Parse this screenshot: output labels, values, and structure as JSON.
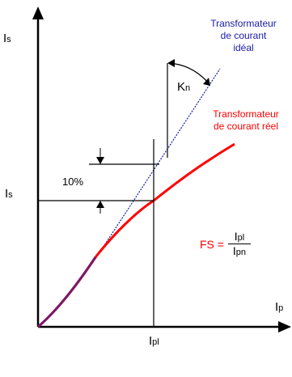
{
  "labels": {
    "y_axis": "Is",
    "y_axis_main": "I",
    "y_axis_sub": "s",
    "y_tick_main": "I",
    "y_tick_sub": "s",
    "x_axis_main": "I",
    "x_axis_sub": "p",
    "x_tick_main": "I",
    "x_tick_sub": "pl",
    "ideal_line1": "Transformateur",
    "ideal_line2": "de courant",
    "ideal_line3": "idéal",
    "real_line1": "Transformateur",
    "real_line2": "de courant réel",
    "kn_main": "K",
    "kn_sub": "n",
    "percent": "10%",
    "fs_label": "FS =",
    "fs_num_main": "I",
    "fs_num_sub": "pl",
    "fs_den_main": "I",
    "fs_den_sub": "pn"
  },
  "colors": {
    "axis": "#000000",
    "ideal": "#1a1aa6",
    "real": "#ff0000"
  }
}
